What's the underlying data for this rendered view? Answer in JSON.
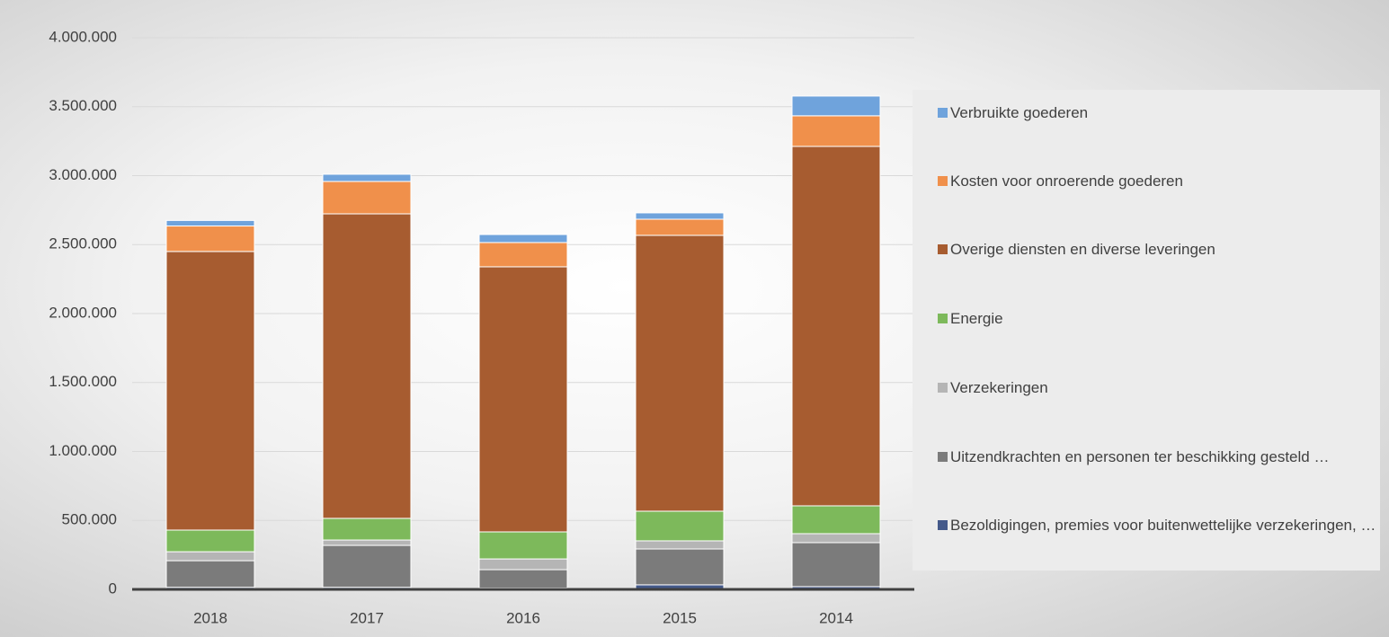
{
  "chart_data": {
    "type": "stacked_bar",
    "categories": [
      "2018",
      "2017",
      "2016",
      "2015",
      "2014"
    ],
    "series": [
      {
        "name": "Bezoldigingen, premies voor buitenwettelijke verzekeringen, …",
        "color": "#44598a",
        "values": [
          15000,
          15000,
          10000,
          33000,
          20000
        ]
      },
      {
        "name": "Uitzendkrachten en personen ter beschikking gesteld …",
        "color": "#7b7b7b",
        "values": [
          193000,
          304000,
          133000,
          260000,
          319000
        ]
      },
      {
        "name": "Verzekeringen",
        "color": "#b5b5b5",
        "values": [
          65000,
          39000,
          78000,
          59000,
          65000
        ]
      },
      {
        "name": "Energie",
        "color": "#7db95b",
        "values": [
          157000,
          157000,
          196000,
          215000,
          202000
        ]
      },
      {
        "name": "Overige diensten en diverse leveringen",
        "color": "#a75c30",
        "values": [
          2020000,
          2208000,
          1922000,
          2000000,
          2606000
        ]
      },
      {
        "name": "Kosten voor onroerende goederen",
        "color": "#f0904b",
        "values": [
          185000,
          235000,
          176000,
          117000,
          222000
        ]
      },
      {
        "name": "Verbruikte goederen",
        "color": "#6fa3dc",
        "values": [
          40000,
          52000,
          58000,
          46000,
          143000
        ]
      }
    ],
    "ylim": [
      0,
      4000000
    ],
    "yticks": [
      0,
      {
        "value": 500000,
        "label": "500.000"
      },
      {
        "value": 1000000,
        "label": "1.000.000"
      },
      {
        "value": 1500000,
        "label": "1.500.000"
      },
      {
        "value": 2000000,
        "label": "2.000.000"
      },
      {
        "value": 2500000,
        "label": "2.500.000"
      },
      {
        "value": 3000000,
        "label": "3.000.000"
      },
      {
        "value": 3500000,
        "label": "3.500.000"
      },
      {
        "value": 4000000,
        "label": "4.000.000"
      }
    ],
    "grid": true,
    "legend": "right"
  }
}
